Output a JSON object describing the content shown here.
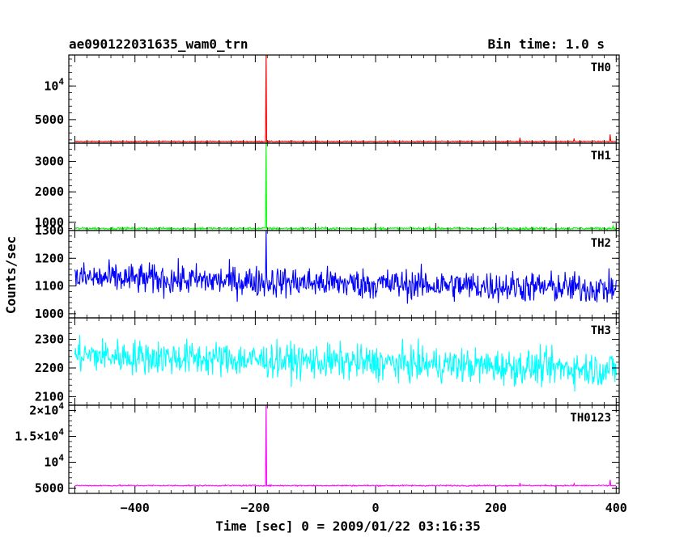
{
  "header": {
    "left_title": "ae090122031635_wam0_trn",
    "right_title": "Bin time: 1.0 s"
  },
  "chart_data": {
    "type": "line",
    "title": "ae090122031635_wam0_trn",
    "subtitle": "Bin time: 1.0 s",
    "xlabel": "Time [sec] 0 = 2009/01/22 03:16:35",
    "ylabel": "Counts/sec",
    "xlim": [
      -510,
      405
    ],
    "x_ticks": [
      -400,
      -200,
      0,
      200,
      400
    ],
    "x_tick_labels": [
      "−400",
      "−200",
      "0",
      "200",
      "400"
    ],
    "bin_time_s": 1.0,
    "x_range": [
      -500,
      400
    ],
    "spike_time": -182,
    "panels": [
      {
        "label": "TH0",
        "color": "#ff0000",
        "ylim": [
          1500,
          14600
        ],
        "ticks": [
          5000,
          10000
        ],
        "tick_labels": [
          "5000",
          "10^4"
        ],
        "baseline": 1750,
        "noise": 80,
        "spike_value": 15000,
        "extra_spikes": [
          {
            "t": 240,
            "v": 2300
          },
          {
            "t": 330,
            "v": 2200
          },
          {
            "t": 390,
            "v": 2800
          }
        ]
      },
      {
        "label": "TH1",
        "color": "#00ff00",
        "ylim": [
          730,
          3600
        ],
        "ticks": [
          1000,
          2000,
          3000
        ],
        "tick_labels": [
          "1000",
          "2000",
          "3000"
        ],
        "baseline": 800,
        "noise": 35,
        "spike_value": 3600,
        "extra_spikes": [
          {
            "t": 395,
            "v": 880
          }
        ]
      },
      {
        "label": "TH2",
        "color": "#0000ff",
        "ylim": [
          985,
          1300
        ],
        "ticks": [
          1000,
          1100,
          1200,
          1300
        ],
        "tick_labels": [
          "1000",
          "1100",
          "1200",
          "1300"
        ],
        "baseline_start": 1130,
        "baseline_end": 1090,
        "noise": 55,
        "spike_value": 1300,
        "extra_spikes": []
      },
      {
        "label": "TH3",
        "color": "#00ffff",
        "ylim": [
          2070,
          2375
        ],
        "ticks": [
          2100,
          2200,
          2300
        ],
        "tick_labels": [
          "2100",
          "2200",
          "2300"
        ],
        "baseline_start": 2245,
        "baseline_end": 2195,
        "noise": 60,
        "spike_value": null,
        "extra_spikes": []
      },
      {
        "label": "TH0123",
        "color": "#ff00ff",
        "ylim": [
          4000,
          21000
        ],
        "ticks": [
          5000,
          10000,
          15000,
          20000
        ],
        "tick_labels": [
          "5000",
          "10^4",
          "1.5×10^4",
          "2×10^4"
        ],
        "baseline": 5500,
        "noise": 120,
        "spike_value": 21000,
        "extra_spikes": [
          {
            "t": 240,
            "v": 6000
          },
          {
            "t": 330,
            "v": 5900
          },
          {
            "t": 390,
            "v": 6600
          }
        ]
      }
    ]
  }
}
